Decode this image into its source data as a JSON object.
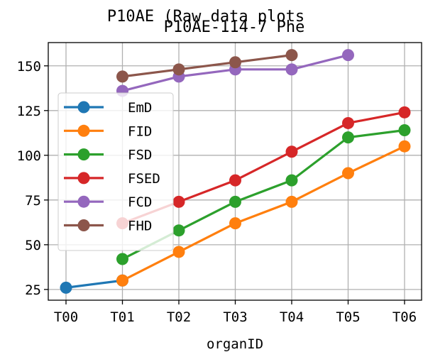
{
  "chart_data": {
    "type": "line",
    "suptitle": "P10AE (Raw data plots",
    "title": "P10AE-114-7 Phe",
    "xlabel": "organID",
    "ylabel": "",
    "categories": [
      "T00",
      "T01",
      "T02",
      "T03",
      "T04",
      "T05",
      "T06"
    ],
    "ylim": [
      19,
      163
    ],
    "yticks": [
      25,
      50,
      75,
      100,
      125,
      150
    ],
    "grid": true,
    "legend_position": "center-left",
    "series": [
      {
        "name": "EmD",
        "color": "#1f77b4",
        "values": [
          26,
          30,
          null,
          null,
          null,
          null,
          null
        ]
      },
      {
        "name": "FID",
        "color": "#ff7f0e",
        "values": [
          null,
          30,
          46,
          62,
          74,
          90,
          105
        ]
      },
      {
        "name": "FSD",
        "color": "#2ca02c",
        "values": [
          null,
          42,
          58,
          74,
          86,
          110,
          114
        ]
      },
      {
        "name": "FSED",
        "color": "#d62728",
        "values": [
          null,
          62,
          74,
          86,
          102,
          118,
          124
        ]
      },
      {
        "name": "FCD",
        "color": "#9467bd",
        "values": [
          null,
          136,
          144,
          148,
          148,
          156,
          null
        ]
      },
      {
        "name": "FHD",
        "color": "#8c564b",
        "values": [
          null,
          144,
          148,
          152,
          156,
          null,
          null
        ]
      }
    ]
  }
}
